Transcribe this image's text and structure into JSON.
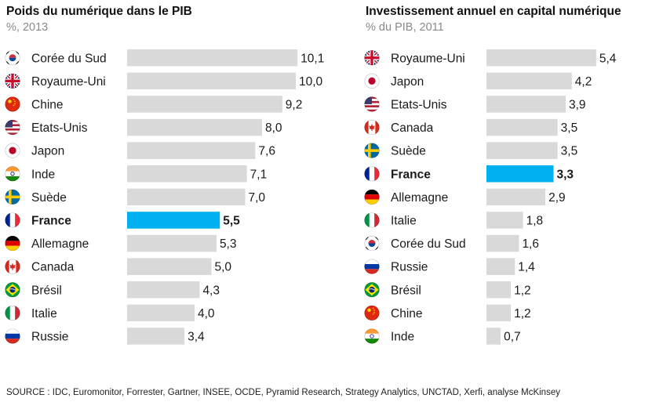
{
  "colors": {
    "bar": "#d9d9d9",
    "highlight": "#00b0f0",
    "text": "#1a1a1a"
  },
  "chart_data": [
    {
      "type": "bar",
      "orientation": "horizontal",
      "title": "Poids du numérique dans le PIB",
      "subtitle": "%, 2013",
      "highlight": "France",
      "categories": [
        "Corée du Sud",
        "Royaume-Uni",
        "Chine",
        "Etats-Unis",
        "Japon",
        "Inde",
        "Suède",
        "France",
        "Allemagne",
        "Canada",
        "Brésil",
        "Italie",
        "Russie"
      ],
      "flags": [
        "flag-kr-icon",
        "flag-gb-icon",
        "flag-cn-icon",
        "flag-us-icon",
        "flag-jp-icon",
        "flag-in-icon",
        "flag-se-icon",
        "flag-fr-icon",
        "flag-de-icon",
        "flag-ca-icon",
        "flag-br-icon",
        "flag-it-icon",
        "flag-ru-icon"
      ],
      "values": [
        10.1,
        10.0,
        9.2,
        8.0,
        7.6,
        7.1,
        7.0,
        5.5,
        5.3,
        5.0,
        4.3,
        4.0,
        3.4
      ],
      "value_labels": [
        "10,1",
        "10,0",
        "9,2",
        "8,0",
        "7,6",
        "7,1",
        "7,0",
        "5,5",
        "5,3",
        "5,0",
        "4,3",
        "4,0",
        "3,4"
      ]
    },
    {
      "type": "bar",
      "orientation": "horizontal",
      "title": "Investissement annuel en capital numérique",
      "subtitle": "% du PIB, 2011",
      "highlight": "France",
      "categories": [
        "Royaume-Uni",
        "Japon",
        "Etats-Unis",
        "Canada",
        "Suède",
        "France",
        "Allemagne",
        "Italie",
        "Corée du Sud",
        "Russie",
        "Brésil",
        "Chine",
        "Inde"
      ],
      "flags": [
        "flag-gb-icon",
        "flag-jp-icon",
        "flag-us-icon",
        "flag-ca-icon",
        "flag-se-icon",
        "flag-fr-icon",
        "flag-de-icon",
        "flag-it-icon",
        "flag-kr-icon",
        "flag-ru-icon",
        "flag-br-icon",
        "flag-cn-icon",
        "flag-in-icon"
      ],
      "values": [
        5.4,
        4.2,
        3.9,
        3.5,
        3.5,
        3.3,
        2.9,
        1.8,
        1.6,
        1.4,
        1.2,
        1.2,
        0.7
      ],
      "value_labels": [
        "5,4",
        "4,2",
        "3,9",
        "3,5",
        "3,5",
        "3,3",
        "2,9",
        "1,8",
        "1,6",
        "1,4",
        "1,2",
        "1,2",
        "0,7"
      ]
    }
  ],
  "source": "SOURCE : IDC, Euromonitor, Forrester, Gartner, INSEE, OCDE, Pyramid Research, Strategy Analytics, UNCTAD, Xerfi, analyse McKinsey"
}
